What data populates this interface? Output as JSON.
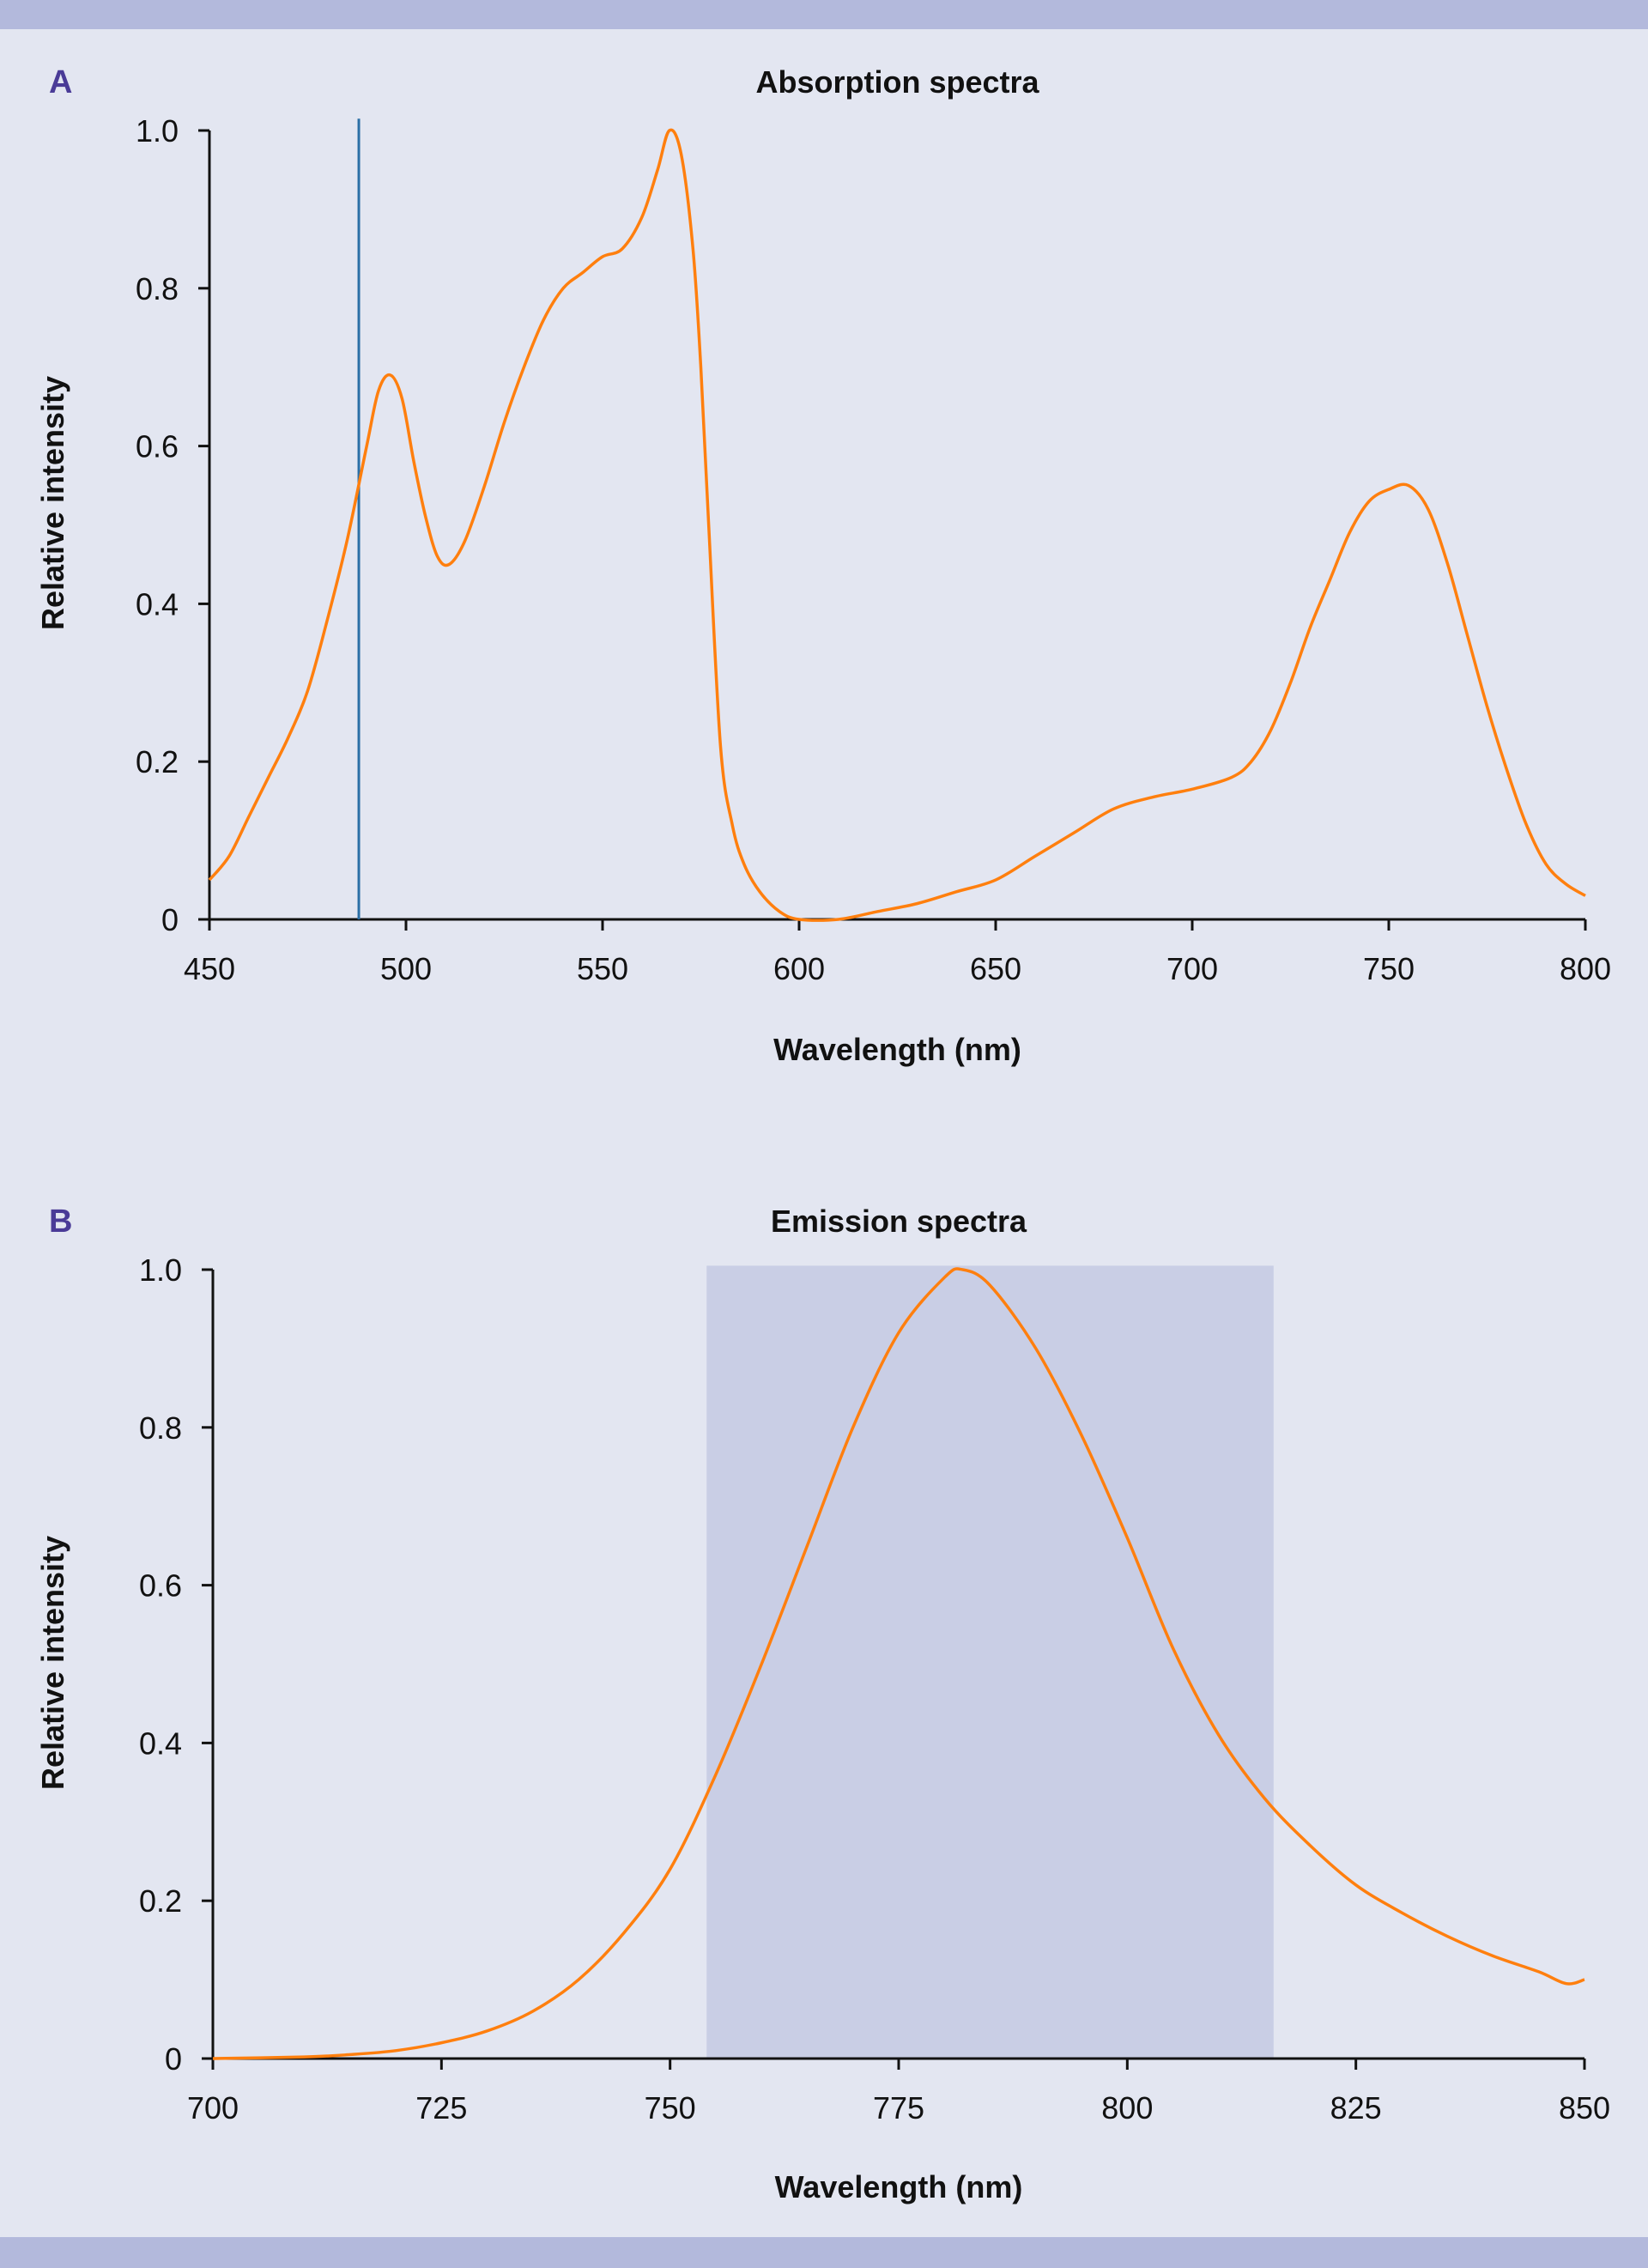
{
  "colors": {
    "band": "#b3b9dc",
    "background": "#e3e6f1",
    "curve": "#ff7f0e",
    "marker": "#2b6fa6",
    "shade": "#c9cee5",
    "panel_label": "#4a3b97"
  },
  "chart_data": [
    {
      "panel": "A",
      "type": "line",
      "title": "Absorption spectra",
      "xlabel": "Wavelength (nm)",
      "ylabel": "Relative intensity",
      "xlim": [
        450,
        800
      ],
      "ylim": [
        0,
        1.0
      ],
      "xticks": [
        "450",
        "500",
        "550",
        "600",
        "650",
        "700",
        "750",
        "800"
      ],
      "yticks": [
        "0",
        "0.2",
        "0.4",
        "0.6",
        "0.8",
        "1.0"
      ],
      "grid": false,
      "vline": 488,
      "series": [
        {
          "name": "absorption",
          "x": [
            450,
            455,
            460,
            465,
            470,
            475,
            480,
            485,
            490,
            493,
            496,
            499,
            502,
            505,
            508,
            511,
            515,
            520,
            525,
            530,
            535,
            540,
            545,
            550,
            555,
            560,
            564,
            567,
            570,
            573,
            575,
            577,
            580,
            583,
            586,
            590,
            595,
            600,
            610,
            620,
            630,
            640,
            650,
            660,
            670,
            680,
            690,
            700,
            710,
            715,
            720,
            725,
            730,
            735,
            740,
            745,
            750,
            755,
            760,
            765,
            770,
            775,
            780,
            785,
            790,
            795,
            800
          ],
          "y": [
            0.05,
            0.08,
            0.13,
            0.18,
            0.23,
            0.29,
            0.38,
            0.48,
            0.6,
            0.67,
            0.69,
            0.66,
            0.58,
            0.51,
            0.46,
            0.45,
            0.48,
            0.55,
            0.63,
            0.7,
            0.76,
            0.8,
            0.82,
            0.84,
            0.85,
            0.89,
            0.95,
            1.0,
            0.97,
            0.85,
            0.7,
            0.5,
            0.22,
            0.12,
            0.07,
            0.035,
            0.01,
            0.0,
            0.0,
            0.01,
            0.02,
            0.035,
            0.05,
            0.08,
            0.11,
            0.14,
            0.155,
            0.165,
            0.18,
            0.2,
            0.24,
            0.3,
            0.37,
            0.43,
            0.49,
            0.53,
            0.545,
            0.55,
            0.52,
            0.45,
            0.36,
            0.27,
            0.19,
            0.12,
            0.07,
            0.045,
            0.03
          ]
        }
      ]
    },
    {
      "panel": "B",
      "type": "line",
      "title": "Emission spectra",
      "xlabel": "Wavelength (nm)",
      "ylabel": "Relative intensity",
      "xlim": [
        700,
        850
      ],
      "ylim": [
        0,
        1.0
      ],
      "xticks": [
        "700",
        "725",
        "750",
        "775",
        "800",
        "825",
        "850"
      ],
      "yticks": [
        "0",
        "0.2",
        "0.4",
        "0.6",
        "0.8",
        "1.0"
      ],
      "grid": false,
      "shaded_range": [
        754,
        816
      ],
      "series": [
        {
          "name": "emission",
          "x": [
            700,
            710,
            715,
            720,
            725,
            730,
            735,
            740,
            745,
            750,
            755,
            760,
            765,
            770,
            775,
            780,
            782,
            785,
            790,
            795,
            800,
            805,
            810,
            815,
            820,
            825,
            830,
            835,
            840,
            845,
            848,
            850
          ],
          "y": [
            0,
            0.002,
            0.005,
            0.01,
            0.02,
            0.035,
            0.06,
            0.1,
            0.16,
            0.24,
            0.36,
            0.5,
            0.65,
            0.8,
            0.92,
            0.99,
            1.0,
            0.98,
            0.9,
            0.79,
            0.66,
            0.52,
            0.41,
            0.33,
            0.27,
            0.22,
            0.185,
            0.155,
            0.13,
            0.11,
            0.095,
            0.1
          ]
        }
      ]
    }
  ]
}
